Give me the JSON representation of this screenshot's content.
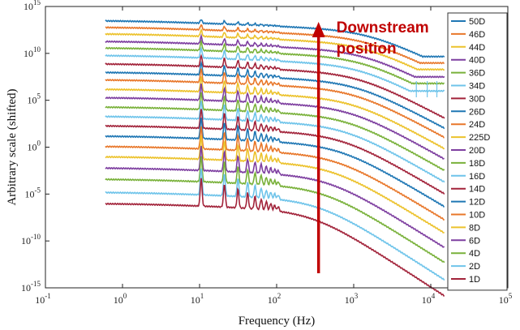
{
  "chart_data": {
    "type": "line",
    "title": "",
    "xlabel": "Frequency (Hz)",
    "ylabel": "Arbitrary scale (shifted)",
    "x_scale": "log",
    "y_scale": "log",
    "xlim": [
      0.1,
      100000
    ],
    "ylim": [
      1e-15,
      1000000000000000.0
    ],
    "x_ticks": [
      {
        "value": 0.1,
        "base": "10",
        "exp": "-1"
      },
      {
        "value": 1,
        "base": "10",
        "exp": "0"
      },
      {
        "value": 10,
        "base": "10",
        "exp": "1"
      },
      {
        "value": 100,
        "base": "10",
        "exp": "2"
      },
      {
        "value": 1000,
        "base": "10",
        "exp": "3"
      },
      {
        "value": 10000,
        "base": "10",
        "exp": "4"
      },
      {
        "value": 100000,
        "base": "10",
        "exp": "5"
      }
    ],
    "y_ticks": [
      {
        "value": 1e-15,
        "base": "10",
        "exp": "-15"
      },
      {
        "value": 1e-10,
        "base": "10",
        "exp": "-10"
      },
      {
        "value": 1e-05,
        "base": "10",
        "exp": "-5"
      },
      {
        "value": 1,
        "base": "10",
        "exp": "0"
      },
      {
        "value": 100000,
        "base": "10",
        "exp": "5"
      },
      {
        "value": 10000000000.0,
        "base": "10",
        "exp": "10"
      },
      {
        "value": 1000000000000000.0,
        "base": "10",
        "exp": "15"
      }
    ],
    "grid": false,
    "legend_position": "right",
    "annotation": {
      "text_line1": "Downstream",
      "text_line2": "position",
      "arrow_x": 350,
      "arrow_direction": "up"
    },
    "series": [
      {
        "name": "50D",
        "color": "#1f77b4",
        "log10_level_low": 13.5
      },
      {
        "name": "46D",
        "color": "#e8772a",
        "log10_level_low": 12.8
      },
      {
        "name": "44D",
        "color": "#ecc22c",
        "log10_level_low": 12.1
      },
      {
        "name": "40D",
        "color": "#7e3fa0",
        "log10_level_low": 11.3
      },
      {
        "name": "36D",
        "color": "#79b13a",
        "log10_level_low": 10.6
      },
      {
        "name": "34D",
        "color": "#6fc4ea",
        "log10_level_low": 9.8
      },
      {
        "name": "30D",
        "color": "#a2233a",
        "log10_level_low": 8.9
      },
      {
        "name": "26D",
        "color": "#1f77b4",
        "log10_level_low": 8.0
      },
      {
        "name": "24D",
        "color": "#e8772a",
        "log10_level_low": 7.2
      },
      {
        "name": "225D",
        "color": "#ecc22c",
        "log10_level_low": 6.2
      },
      {
        "name": "20D",
        "color": "#7e3fa0",
        "log10_level_low": 5.3
      },
      {
        "name": "18D",
        "color": "#79b13a",
        "log10_level_low": 4.3
      },
      {
        "name": "16D",
        "color": "#6fc4ea",
        "log10_level_low": 3.3
      },
      {
        "name": "14D",
        "color": "#a2233a",
        "log10_level_low": 2.3
      },
      {
        "name": "12D",
        "color": "#1f77b4",
        "log10_level_low": 1.2
      },
      {
        "name": "10D",
        "color": "#e8772a",
        "log10_level_low": 0.1
      },
      {
        "name": "8D",
        "color": "#ecc22c",
        "log10_level_low": -1.0
      },
      {
        "name": "6D",
        "color": "#7e3fa0",
        "log10_level_low": -2.2
      },
      {
        "name": "4D",
        "color": "#79b13a",
        "log10_level_low": -3.4
      },
      {
        "name": "2D",
        "color": "#6fc4ea",
        "log10_level_low": -4.8
      },
      {
        "name": "1D",
        "color": "#a2233a",
        "log10_level_low": -6.0
      }
    ]
  }
}
